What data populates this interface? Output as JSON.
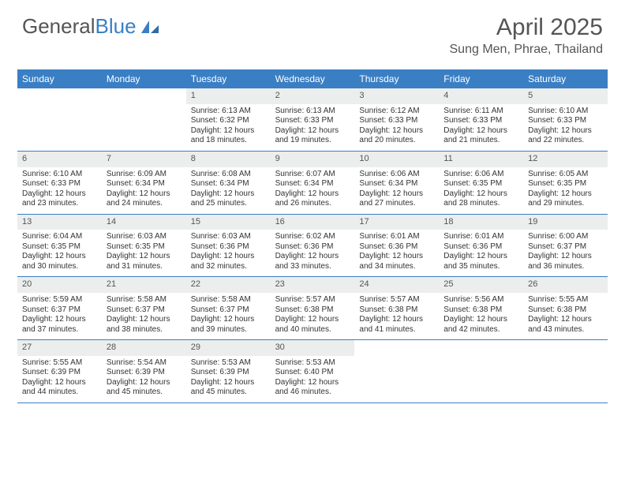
{
  "brand": {
    "part1": "General",
    "part2": "Blue"
  },
  "title": "April 2025",
  "location": "Sung Men, Phrae, Thailand",
  "colors": {
    "header_bg": "#3a7fc4",
    "header_text": "#ffffff",
    "daynum_bg": "#eceded",
    "text": "#333333",
    "title_color": "#555555"
  },
  "day_names": [
    "Sunday",
    "Monday",
    "Tuesday",
    "Wednesday",
    "Thursday",
    "Friday",
    "Saturday"
  ],
  "weeks": [
    [
      {
        "n": "",
        "sunrise": "",
        "sunset": "",
        "daylight": ""
      },
      {
        "n": "",
        "sunrise": "",
        "sunset": "",
        "daylight": ""
      },
      {
        "n": "1",
        "sunrise": "Sunrise: 6:13 AM",
        "sunset": "Sunset: 6:32 PM",
        "daylight": "Daylight: 12 hours and 18 minutes."
      },
      {
        "n": "2",
        "sunrise": "Sunrise: 6:13 AM",
        "sunset": "Sunset: 6:33 PM",
        "daylight": "Daylight: 12 hours and 19 minutes."
      },
      {
        "n": "3",
        "sunrise": "Sunrise: 6:12 AM",
        "sunset": "Sunset: 6:33 PM",
        "daylight": "Daylight: 12 hours and 20 minutes."
      },
      {
        "n": "4",
        "sunrise": "Sunrise: 6:11 AM",
        "sunset": "Sunset: 6:33 PM",
        "daylight": "Daylight: 12 hours and 21 minutes."
      },
      {
        "n": "5",
        "sunrise": "Sunrise: 6:10 AM",
        "sunset": "Sunset: 6:33 PM",
        "daylight": "Daylight: 12 hours and 22 minutes."
      }
    ],
    [
      {
        "n": "6",
        "sunrise": "Sunrise: 6:10 AM",
        "sunset": "Sunset: 6:33 PM",
        "daylight": "Daylight: 12 hours and 23 minutes."
      },
      {
        "n": "7",
        "sunrise": "Sunrise: 6:09 AM",
        "sunset": "Sunset: 6:34 PM",
        "daylight": "Daylight: 12 hours and 24 minutes."
      },
      {
        "n": "8",
        "sunrise": "Sunrise: 6:08 AM",
        "sunset": "Sunset: 6:34 PM",
        "daylight": "Daylight: 12 hours and 25 minutes."
      },
      {
        "n": "9",
        "sunrise": "Sunrise: 6:07 AM",
        "sunset": "Sunset: 6:34 PM",
        "daylight": "Daylight: 12 hours and 26 minutes."
      },
      {
        "n": "10",
        "sunrise": "Sunrise: 6:06 AM",
        "sunset": "Sunset: 6:34 PM",
        "daylight": "Daylight: 12 hours and 27 minutes."
      },
      {
        "n": "11",
        "sunrise": "Sunrise: 6:06 AM",
        "sunset": "Sunset: 6:35 PM",
        "daylight": "Daylight: 12 hours and 28 minutes."
      },
      {
        "n": "12",
        "sunrise": "Sunrise: 6:05 AM",
        "sunset": "Sunset: 6:35 PM",
        "daylight": "Daylight: 12 hours and 29 minutes."
      }
    ],
    [
      {
        "n": "13",
        "sunrise": "Sunrise: 6:04 AM",
        "sunset": "Sunset: 6:35 PM",
        "daylight": "Daylight: 12 hours and 30 minutes."
      },
      {
        "n": "14",
        "sunrise": "Sunrise: 6:03 AM",
        "sunset": "Sunset: 6:35 PM",
        "daylight": "Daylight: 12 hours and 31 minutes."
      },
      {
        "n": "15",
        "sunrise": "Sunrise: 6:03 AM",
        "sunset": "Sunset: 6:36 PM",
        "daylight": "Daylight: 12 hours and 32 minutes."
      },
      {
        "n": "16",
        "sunrise": "Sunrise: 6:02 AM",
        "sunset": "Sunset: 6:36 PM",
        "daylight": "Daylight: 12 hours and 33 minutes."
      },
      {
        "n": "17",
        "sunrise": "Sunrise: 6:01 AM",
        "sunset": "Sunset: 6:36 PM",
        "daylight": "Daylight: 12 hours and 34 minutes."
      },
      {
        "n": "18",
        "sunrise": "Sunrise: 6:01 AM",
        "sunset": "Sunset: 6:36 PM",
        "daylight": "Daylight: 12 hours and 35 minutes."
      },
      {
        "n": "19",
        "sunrise": "Sunrise: 6:00 AM",
        "sunset": "Sunset: 6:37 PM",
        "daylight": "Daylight: 12 hours and 36 minutes."
      }
    ],
    [
      {
        "n": "20",
        "sunrise": "Sunrise: 5:59 AM",
        "sunset": "Sunset: 6:37 PM",
        "daylight": "Daylight: 12 hours and 37 minutes."
      },
      {
        "n": "21",
        "sunrise": "Sunrise: 5:58 AM",
        "sunset": "Sunset: 6:37 PM",
        "daylight": "Daylight: 12 hours and 38 minutes."
      },
      {
        "n": "22",
        "sunrise": "Sunrise: 5:58 AM",
        "sunset": "Sunset: 6:37 PM",
        "daylight": "Daylight: 12 hours and 39 minutes."
      },
      {
        "n": "23",
        "sunrise": "Sunrise: 5:57 AM",
        "sunset": "Sunset: 6:38 PM",
        "daylight": "Daylight: 12 hours and 40 minutes."
      },
      {
        "n": "24",
        "sunrise": "Sunrise: 5:57 AM",
        "sunset": "Sunset: 6:38 PM",
        "daylight": "Daylight: 12 hours and 41 minutes."
      },
      {
        "n": "25",
        "sunrise": "Sunrise: 5:56 AM",
        "sunset": "Sunset: 6:38 PM",
        "daylight": "Daylight: 12 hours and 42 minutes."
      },
      {
        "n": "26",
        "sunrise": "Sunrise: 5:55 AM",
        "sunset": "Sunset: 6:38 PM",
        "daylight": "Daylight: 12 hours and 43 minutes."
      }
    ],
    [
      {
        "n": "27",
        "sunrise": "Sunrise: 5:55 AM",
        "sunset": "Sunset: 6:39 PM",
        "daylight": "Daylight: 12 hours and 44 minutes."
      },
      {
        "n": "28",
        "sunrise": "Sunrise: 5:54 AM",
        "sunset": "Sunset: 6:39 PM",
        "daylight": "Daylight: 12 hours and 45 minutes."
      },
      {
        "n": "29",
        "sunrise": "Sunrise: 5:53 AM",
        "sunset": "Sunset: 6:39 PM",
        "daylight": "Daylight: 12 hours and 45 minutes."
      },
      {
        "n": "30",
        "sunrise": "Sunrise: 5:53 AM",
        "sunset": "Sunset: 6:40 PM",
        "daylight": "Daylight: 12 hours and 46 minutes."
      },
      {
        "n": "",
        "sunrise": "",
        "sunset": "",
        "daylight": ""
      },
      {
        "n": "",
        "sunrise": "",
        "sunset": "",
        "daylight": ""
      },
      {
        "n": "",
        "sunrise": "",
        "sunset": "",
        "daylight": ""
      }
    ]
  ]
}
